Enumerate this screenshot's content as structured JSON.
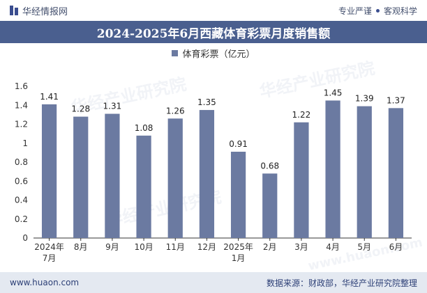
{
  "header": {
    "brand": "华经情报网",
    "tagline_left": "专业严谨",
    "tagline_right": "客观科学"
  },
  "footer": {
    "url": "www.huaon.com",
    "source": "数据来源：财政部，华经产业研究院整理"
  },
  "watermark": {
    "text": "华经产业研究院",
    "url": "www.huaon.com"
  },
  "colors": {
    "bar": "#6b7aa1",
    "title_bg": "#4a5f8f",
    "footer_bg": "#e4e9f1"
  },
  "chart_data": {
    "type": "bar",
    "title": "2024-2025年6月西藏体育彩票月度销售额",
    "categories": [
      [
        "2024年",
        "7月"
      ],
      [
        "8月"
      ],
      [
        "9月"
      ],
      [
        "10月"
      ],
      [
        "11月"
      ],
      [
        "12月"
      ],
      [
        "2025年",
        "1月"
      ],
      [
        "2月"
      ],
      [
        "3月"
      ],
      [
        "4月"
      ],
      [
        "5月"
      ],
      [
        "6月"
      ]
    ],
    "series": [
      {
        "name": "体育彩票（亿元）",
        "values": [
          1.41,
          1.28,
          1.31,
          1.08,
          1.26,
          1.35,
          0.91,
          0.68,
          1.22,
          1.45,
          1.39,
          1.37
        ]
      }
    ],
    "ylim": [
      0,
      1.6
    ],
    "yticks": [
      0,
      0.2,
      0.4,
      0.6,
      0.8,
      1,
      1.2,
      1.4,
      1.6
    ],
    "data_labels": true,
    "legend": "top-center",
    "grid": false
  }
}
